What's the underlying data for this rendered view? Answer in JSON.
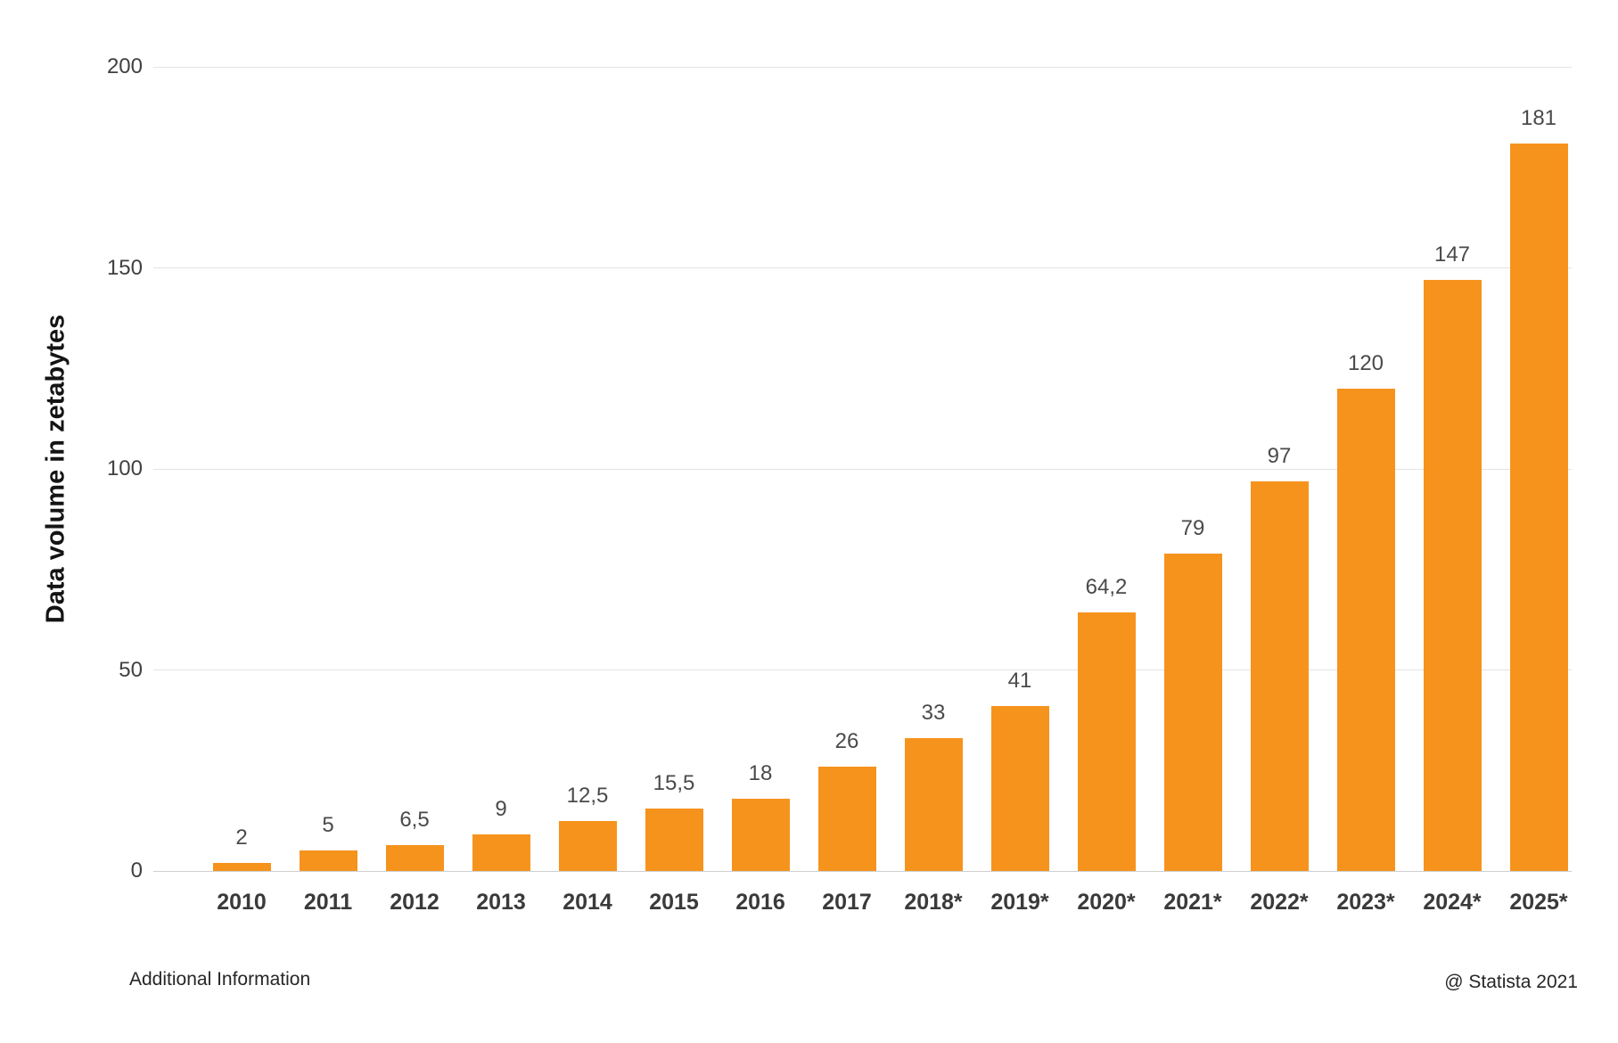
{
  "chart_data": {
    "type": "bar",
    "title": "",
    "ylabel": "Data volume in zetabytes",
    "xlabel": "",
    "categories": [
      "2010",
      "2011",
      "2012",
      "2013",
      "2014",
      "2015",
      "2016",
      "2017",
      "2018*",
      "2019*",
      "2020*",
      "2021*",
      "2022*",
      "2023*",
      "2024*",
      "2025*"
    ],
    "values": [
      2,
      5,
      6.5,
      9,
      12.5,
      15.5,
      18,
      26,
      33,
      41,
      64.2,
      79,
      97,
      120,
      147,
      181
    ],
    "value_labels": [
      "2",
      "5",
      "6,5",
      "9",
      "12,5",
      "15,5",
      "18",
      "26",
      "33",
      "41",
      "64,2",
      "79",
      "97",
      "120",
      "147",
      "181"
    ],
    "ylim": [
      0,
      200
    ],
    "yticks": [
      0,
      50,
      100,
      150,
      200
    ],
    "grid": true,
    "legend": "none",
    "bar_color": "#f6931d"
  },
  "footer": {
    "additional_info": "Additional Information",
    "source": "@ Statista 2021"
  },
  "colors": {
    "bar": "#f6931d",
    "gridline": "#e4e4e4",
    "baseline": "#cfcfcf",
    "tick_text": "#404040",
    "value_text": "#4a4a4a",
    "category_text": "#3a3a3a",
    "background": "#ffffff"
  }
}
